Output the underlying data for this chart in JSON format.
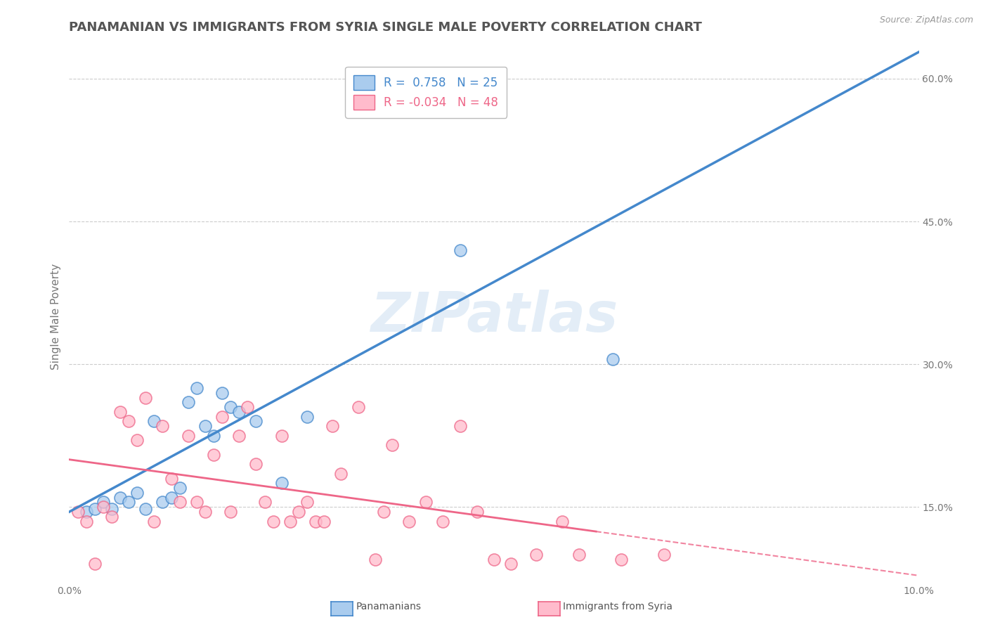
{
  "title": "PANAMANIAN VS IMMIGRANTS FROM SYRIA SINGLE MALE POVERTY CORRELATION CHART",
  "source_text": "Source: ZipAtlas.com",
  "ylabel": "Single Male Poverty",
  "xlim": [
    0.0,
    0.1
  ],
  "ylim": [
    0.07,
    0.63
  ],
  "watermark": "ZIPatlas",
  "legend_R1": "0.758",
  "legend_N1": "25",
  "legend_R2": "-0.034",
  "legend_N2": "48",
  "color_panama": "#aaccee",
  "color_syria": "#ffbbcc",
  "line_color_panama": "#4488cc",
  "line_color_syria": "#ee6688",
  "panama_points_x": [
    0.002,
    0.003,
    0.004,
    0.005,
    0.006,
    0.007,
    0.008,
    0.009,
    0.01,
    0.011,
    0.012,
    0.013,
    0.014,
    0.015,
    0.016,
    0.017,
    0.018,
    0.019,
    0.02,
    0.022,
    0.025,
    0.028,
    0.035,
    0.046,
    0.064
  ],
  "panama_points_y": [
    0.145,
    0.148,
    0.155,
    0.148,
    0.16,
    0.155,
    0.165,
    0.148,
    0.24,
    0.155,
    0.16,
    0.17,
    0.26,
    0.275,
    0.235,
    0.225,
    0.27,
    0.255,
    0.25,
    0.24,
    0.175,
    0.245,
    0.59,
    0.42,
    0.305
  ],
  "syria_points_x": [
    0.001,
    0.002,
    0.003,
    0.004,
    0.005,
    0.006,
    0.007,
    0.008,
    0.009,
    0.01,
    0.011,
    0.012,
    0.013,
    0.014,
    0.015,
    0.016,
    0.017,
    0.018,
    0.019,
    0.02,
    0.021,
    0.022,
    0.023,
    0.024,
    0.025,
    0.026,
    0.027,
    0.028,
    0.029,
    0.03,
    0.031,
    0.032,
    0.034,
    0.036,
    0.037,
    0.038,
    0.04,
    0.042,
    0.044,
    0.046,
    0.048,
    0.05,
    0.052,
    0.055,
    0.058,
    0.06,
    0.065,
    0.07
  ],
  "syria_points_y": [
    0.145,
    0.135,
    0.09,
    0.15,
    0.14,
    0.25,
    0.24,
    0.22,
    0.265,
    0.135,
    0.235,
    0.18,
    0.155,
    0.225,
    0.155,
    0.145,
    0.205,
    0.245,
    0.145,
    0.225,
    0.255,
    0.195,
    0.155,
    0.135,
    0.225,
    0.135,
    0.145,
    0.155,
    0.135,
    0.135,
    0.235,
    0.185,
    0.255,
    0.095,
    0.145,
    0.215,
    0.135,
    0.155,
    0.135,
    0.235,
    0.145,
    0.095,
    0.09,
    0.1,
    0.135,
    0.1,
    0.095,
    0.1
  ],
  "background_color": "#ffffff",
  "grid_color": "#cccccc",
  "right_y_ticks": [
    0.15,
    0.3,
    0.45,
    0.6
  ],
  "right_y_labels": [
    "15.0%",
    "30.0%",
    "45.0%",
    "60.0%"
  ],
  "title_fontsize": 13,
  "axis_label_fontsize": 11,
  "tick_fontsize": 10,
  "legend_fontsize": 12
}
